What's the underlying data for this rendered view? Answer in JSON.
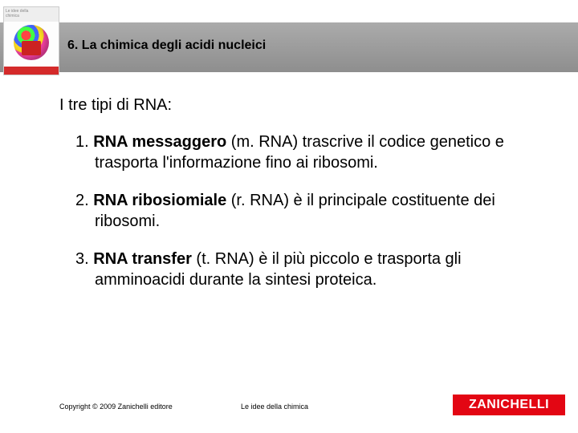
{
  "header": {
    "chapter_title": "6. La chimica degli acidi nucleici"
  },
  "book_cover": {
    "series_line1": "Le idee della",
    "series_line2": "chimica"
  },
  "content": {
    "intro": "I tre tipi di RNA:",
    "items": [
      {
        "num": "1.",
        "bold": "RNA messaggero",
        "rest": " (m. RNA) trascrive il codice genetico e trasporta l'informazione fino ai ribosomi."
      },
      {
        "num": "2.",
        "bold": "RNA ribosiomiale",
        "rest": " (r. RNA) è il principale costituente dei ribosomi."
      },
      {
        "num": "3.",
        "bold": "RNA transfer",
        "rest": " (t. RNA) è il più piccolo e trasporta gli amminoacidi durante la sintesi proteica."
      }
    ]
  },
  "footer": {
    "copyright": "Copyright © 2009 Zanichelli editore",
    "center": "Le idee della chimica",
    "publisher": "ZANICHELLI"
  },
  "colors": {
    "publisher_red": "#e30613",
    "header_gray_top": "#ababab",
    "header_gray_bottom": "#8e8e8e"
  }
}
